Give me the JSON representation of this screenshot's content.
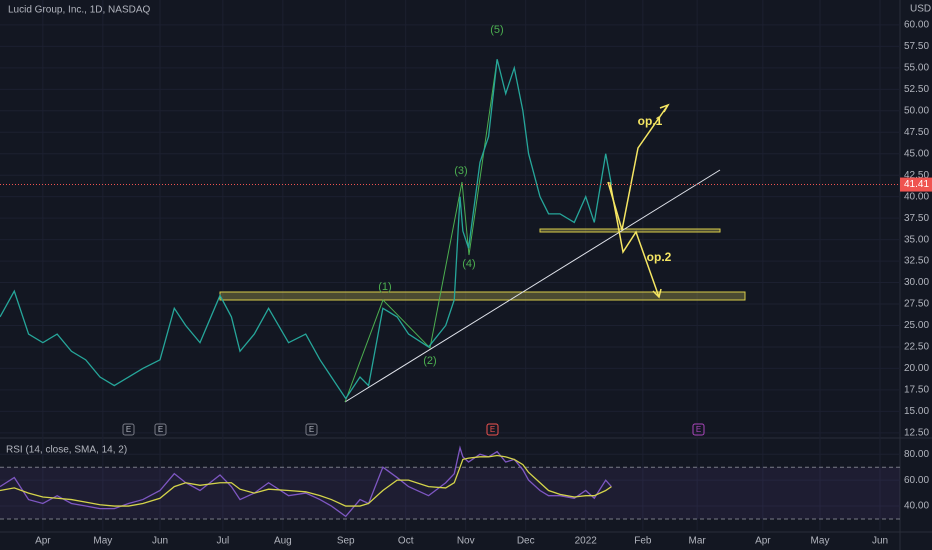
{
  "chart_data": [
    {
      "type": "line",
      "title": "Lucid Group, Inc., 1D, NASDAQ",
      "currency": "USD",
      "color": "#26a69a",
      "x": [
        -15,
        -10,
        -5,
        0,
        5,
        10,
        15,
        20,
        25,
        30,
        35,
        41,
        46,
        50,
        55,
        62,
        66,
        69,
        74,
        79,
        86,
        92,
        97,
        101,
        106,
        111,
        114,
        119,
        124,
        128,
        135,
        141,
        144,
        146,
        147,
        149,
        153,
        156,
        159,
        162,
        165,
        168,
        170,
        174,
        177,
        181,
        186,
        190,
        193,
        197,
        199
      ],
      "values": [
        26,
        29,
        24,
        23,
        24,
        22,
        21,
        19,
        18,
        19,
        20,
        21,
        27,
        25,
        23,
        28.5,
        26,
        22,
        24,
        27,
        23,
        24,
        21,
        19,
        16.5,
        19,
        18,
        27,
        26,
        24,
        22.5,
        25,
        28,
        40,
        36,
        34,
        44,
        47,
        56,
        52,
        55,
        50,
        45,
        40,
        38,
        38,
        37,
        40,
        37,
        45,
        41.41
      ],
      "last_price": 41.41,
      "xlim": [
        -15,
        300
      ],
      "xticks": [
        {
          "value": 0,
          "label": "Apr"
        },
        {
          "value": 21,
          "label": "May"
        },
        {
          "value": 41,
          "label": "Jun"
        },
        {
          "value": 63,
          "label": "Jul"
        },
        {
          "value": 84,
          "label": "Aug"
        },
        {
          "value": 106,
          "label": "Sep"
        },
        {
          "value": 127,
          "label": "Oct"
        },
        {
          "value": 148,
          "label": "Nov"
        },
        {
          "value": 169,
          "label": "Dec"
        },
        {
          "value": 190,
          "label": "2022"
        },
        {
          "value": 210,
          "label": "Feb"
        },
        {
          "value": 229,
          "label": "Mar"
        },
        {
          "value": 252,
          "label": "Apr"
        },
        {
          "value": 272,
          "label": "May"
        },
        {
          "value": 293,
          "label": "Jun"
        }
      ],
      "ylim": [
        11.9,
        62.9
      ],
      "yticks": [
        {
          "value": 12.5,
          "label": "12.50"
        },
        {
          "value": 15,
          "label": "15.00"
        },
        {
          "value": 17.5,
          "label": "17.50"
        },
        {
          "value": 20,
          "label": "20.00"
        },
        {
          "value": 22.5,
          "label": "22.50"
        },
        {
          "value": 25,
          "label": "25.00"
        },
        {
          "value": 27.5,
          "label": "27.50"
        },
        {
          "value": 30,
          "label": "30.00"
        },
        {
          "value": 32.5,
          "label": "32.50"
        },
        {
          "value": 35,
          "label": "35.00"
        },
        {
          "value": 37.5,
          "label": "37.50"
        },
        {
          "value": 40,
          "label": "40.00"
        },
        {
          "value": 42.5,
          "label": "42.50"
        },
        {
          "value": 45,
          "label": "45.00"
        },
        {
          "value": 47.5,
          "label": "47.50"
        },
        {
          "value": 50,
          "label": "50.00"
        },
        {
          "value": 52.5,
          "label": "52.50"
        },
        {
          "value": 55,
          "label": "55.00"
        },
        {
          "value": 57.5,
          "label": "57.50"
        },
        {
          "value": 60,
          "label": "60.00"
        }
      ],
      "annotations": [
        "(1)",
        "(2)",
        "(3)",
        "(4)",
        "(5)",
        "op.1",
        "op.2"
      ],
      "earnings_markers": [
        "E",
        "E",
        "E",
        "E",
        "E"
      ]
    },
    {
      "type": "line",
      "title": "RSI (14, close, SMA, 14, 2)",
      "x": [
        -15,
        -10,
        -5,
        0,
        5,
        10,
        15,
        20,
        25,
        30,
        35,
        41,
        46,
        50,
        55,
        62,
        66,
        69,
        74,
        79,
        86,
        92,
        97,
        101,
        106,
        111,
        114,
        119,
        124,
        128,
        135,
        141,
        144,
        146,
        147,
        149,
        153,
        156,
        159,
        162,
        165,
        168,
        170,
        174,
        177,
        181,
        186,
        190,
        193,
        197,
        199
      ],
      "series": [
        {
          "color": "#7e57c2",
          "values": [
            55,
            62,
            45,
            42,
            48,
            42,
            40,
            38,
            38,
            42,
            45,
            52,
            65,
            58,
            52,
            64,
            55,
            45,
            50,
            58,
            48,
            50,
            45,
            40,
            32,
            45,
            42,
            70,
            62,
            55,
            48,
            58,
            65,
            85,
            78,
            74,
            80,
            78,
            82,
            74,
            76,
            68,
            60,
            52,
            48,
            48,
            46,
            52,
            46,
            60,
            55
          ]
        },
        {
          "color": "#d4d44a",
          "values": [
            52,
            54,
            50,
            47,
            46,
            45,
            43,
            41,
            40,
            40,
            42,
            46,
            55,
            58,
            56,
            58,
            58,
            53,
            50,
            53,
            52,
            51,
            48,
            45,
            40,
            40,
            42,
            52,
            60,
            60,
            55,
            54,
            58,
            70,
            76,
            77,
            78,
            78,
            79,
            78,
            76,
            72,
            66,
            58,
            52,
            49,
            47,
            48,
            48,
            52,
            55
          ]
        }
      ],
      "ylim": [
        21.5,
        91
      ],
      "yticks": [
        {
          "value": 40,
          "label": "40.00"
        },
        {
          "value": 60,
          "label": "60.00"
        },
        {
          "value": 80,
          "label": "80.00"
        }
      ],
      "bands": [
        70,
        30
      ]
    }
  ]
}
